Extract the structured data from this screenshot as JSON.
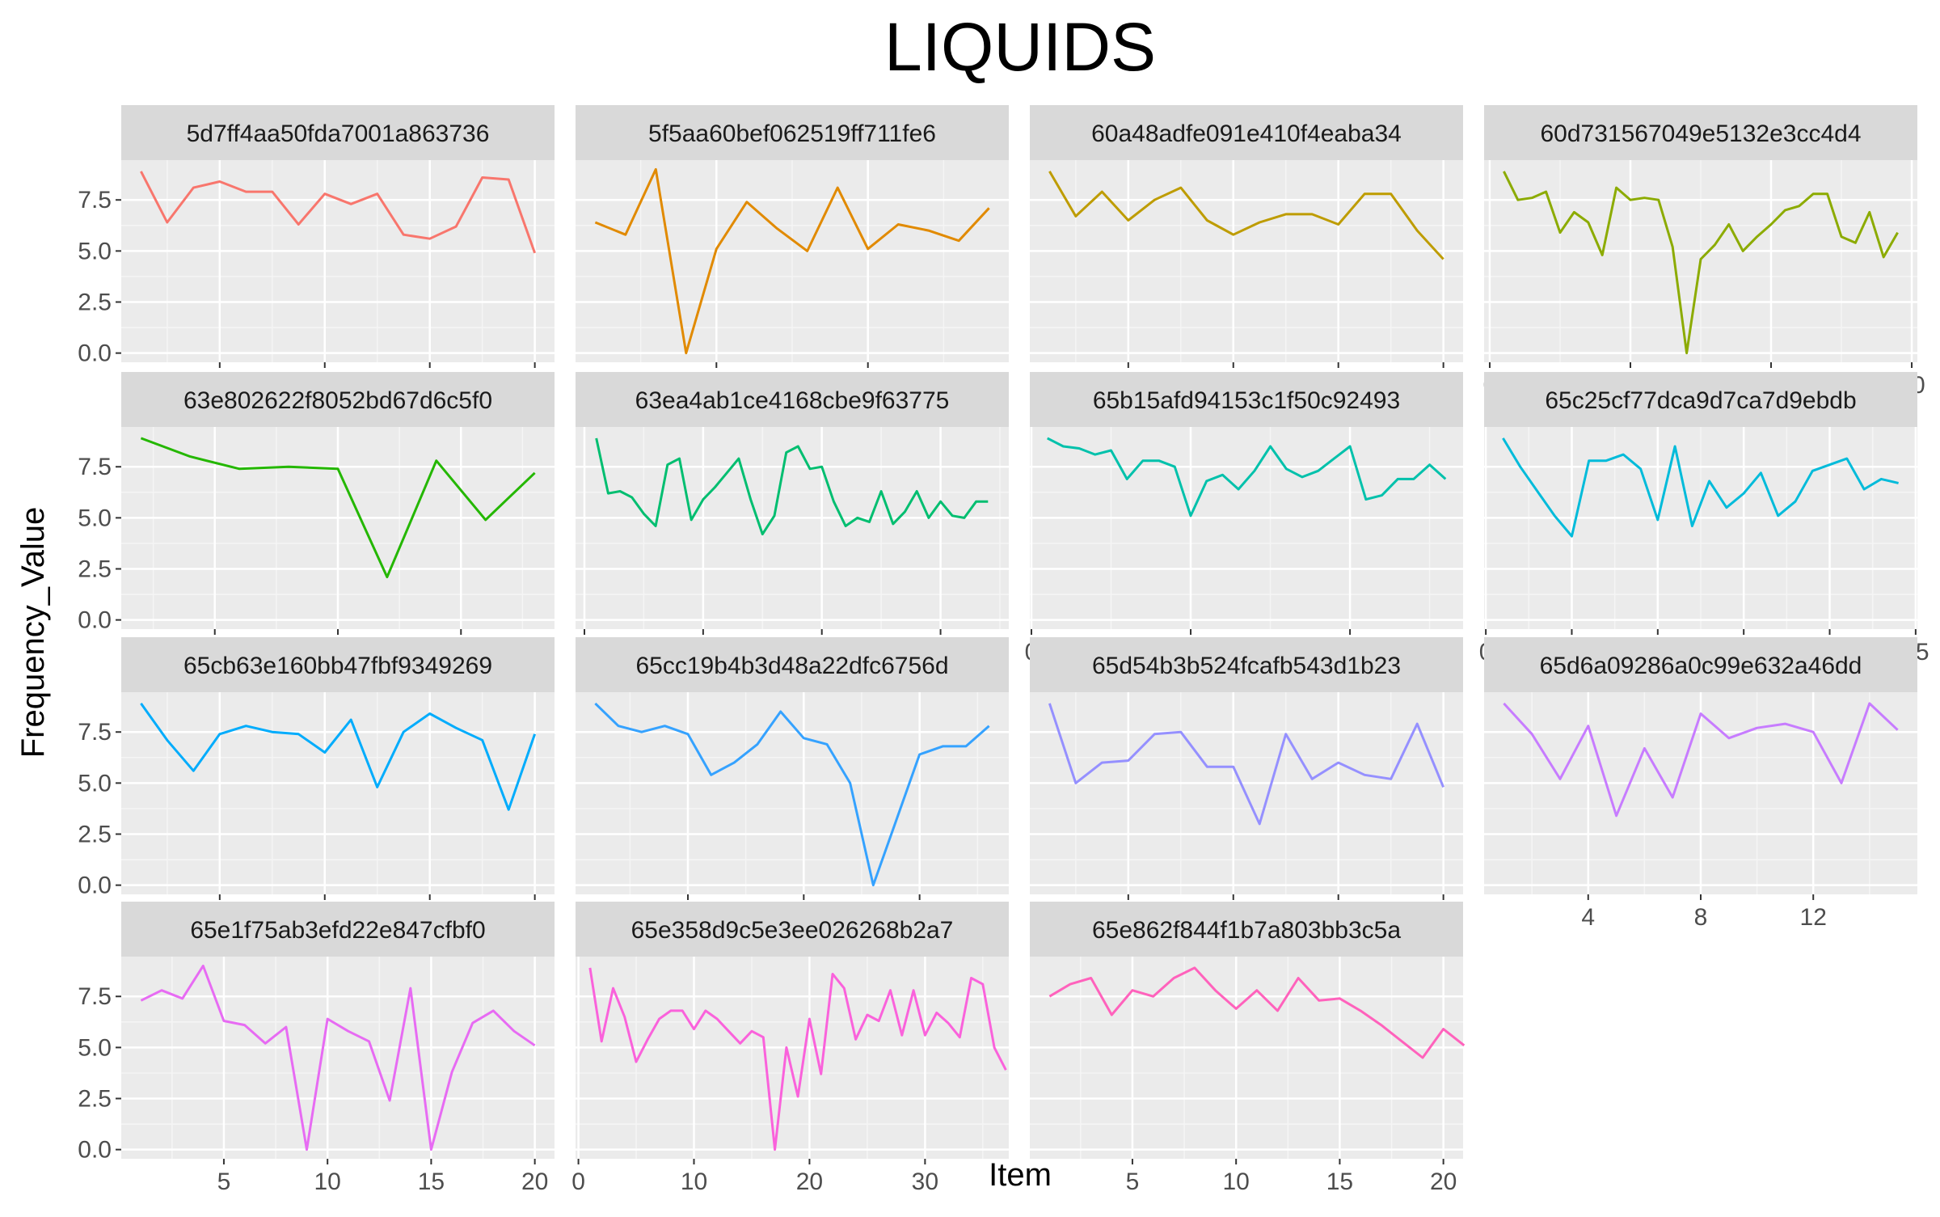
{
  "chart_data": {
    "type": "line",
    "title": "LIQUIDS",
    "xlabel": "Item",
    "ylabel": "Frequency_Value",
    "ylim": [
      0,
      9
    ],
    "y_ticks": [
      "0.0",
      "2.5",
      "5.0",
      "7.5"
    ],
    "y_tick_values": [
      0,
      2.5,
      5,
      7.5
    ],
    "grid": true,
    "legend": "none",
    "facets": [
      {
        "name": "5d7ff4aa50fda7001a863736",
        "color": "#F8766D",
        "xlim": [
          0.25,
          16.75
        ],
        "x_ticks": [
          "4",
          "8",
          "12",
          "16"
        ],
        "x_tick_values": [
          4,
          8,
          12,
          16
        ],
        "values": [
          8.9,
          6.4,
          8.1,
          8.4,
          7.9,
          7.9,
          6.3,
          7.8,
          7.3,
          7.8,
          5.8,
          5.6,
          6.2,
          8.6,
          8.5,
          4.9
        ]
      },
      {
        "name": "5f5aa60bef062519ff711fe6",
        "color": "#E18A00",
        "xlim": [
          0.35,
          14.65
        ],
        "x_ticks": [
          "5",
          "10"
        ],
        "x_tick_values": [
          5,
          10
        ],
        "values": [
          6.4,
          5.8,
          9.0,
          0.0,
          5.1,
          7.4,
          6.1,
          5.0,
          8.1,
          5.1,
          6.3,
          6.0,
          5.5,
          7.1
        ]
      },
      {
        "name": "60a48adfe091e410f4eaba34",
        "color": "#BE9C00",
        "xlim": [
          0.25,
          16.75
        ],
        "x_ticks": [
          "4",
          "8",
          "12",
          "16"
        ],
        "x_tick_values": [
          4,
          8,
          12,
          16
        ],
        "values": [
          8.9,
          6.7,
          7.9,
          6.5,
          7.5,
          8.1,
          6.5,
          5.8,
          6.4,
          6.8,
          6.8,
          6.3,
          7.8,
          7.8,
          6.0,
          4.6
        ]
      },
      {
        "name": "60d731567049e5132e3cc4d4",
        "color": "#8CAB00",
        "xlim": [
          -0.4,
          30.4
        ],
        "x_ticks": [
          "0",
          "10",
          "20",
          "30"
        ],
        "x_tick_values": [
          0,
          10,
          20,
          30
        ],
        "values": [
          8.9,
          7.5,
          7.6,
          7.9,
          5.9,
          6.9,
          6.4,
          4.8,
          8.1,
          7.5,
          7.6,
          7.5,
          5.2,
          0.0,
          4.6,
          5.3,
          6.3,
          5.0,
          5.7,
          6.3,
          7.0,
          7.2,
          7.8,
          7.8,
          5.7,
          5.4,
          6.9,
          4.7,
          5.9
        ]
      },
      {
        "name": "63e802622f8052bd67d6c5f0",
        "color": "#24B700",
        "xlim": [
          0.6,
          9.4
        ],
        "x_ticks": [
          "2.5",
          "5.0",
          "7.5"
        ],
        "x_tick_values": [
          2.5,
          5,
          7.5
        ],
        "values": [
          8.9,
          8.0,
          7.4,
          7.5,
          7.4,
          2.1,
          7.8,
          4.9,
          7.2
        ]
      },
      {
        "name": "63ea4ab1ce4168cbe9f63775",
        "color": "#00BE70",
        "xlim": [
          -0.75,
          35.75
        ],
        "x_ticks": [
          "0",
          "10",
          "20",
          "30"
        ],
        "x_tick_values": [
          0,
          10,
          20,
          30
        ],
        "values": [
          8.9,
          6.2,
          6.3,
          6.0,
          5.2,
          4.6,
          7.6,
          7.9,
          4.9,
          5.9,
          6.5,
          7.2,
          7.9,
          5.9,
          4.2,
          5.1,
          8.2,
          8.5,
          7.4,
          7.5,
          5.8,
          4.6,
          5.0,
          4.8,
          6.3,
          4.7,
          5.3,
          6.3,
          5.0,
          5.8,
          5.1,
          5.0,
          5.8,
          5.8
        ]
      },
      {
        "name": "65b15afd94153c1f50c92493",
        "color": "#00C1AB",
        "xlim": [
          -0.1,
          27.1
        ],
        "x_ticks": [
          "0",
          "10",
          "20"
        ],
        "x_tick_values": [
          0,
          10,
          20
        ],
        "values": [
          8.9,
          8.5,
          8.4,
          8.1,
          8.3,
          6.9,
          7.8,
          7.8,
          7.5,
          5.1,
          6.8,
          7.1,
          6.4,
          7.3,
          8.5,
          7.4,
          7.0,
          7.3,
          7.9,
          8.5,
          5.9,
          6.1,
          6.9,
          6.9,
          7.6,
          6.9
        ]
      },
      {
        "name": "65c25cf77dca9d7ca7d9ebdb",
        "color": "#00BBDA",
        "xlim": [
          -0.1,
          25.1
        ],
        "x_ticks": [
          "0",
          "5",
          "10",
          "15",
          "20",
          "25"
        ],
        "x_tick_values": [
          0,
          5,
          10,
          15,
          20,
          25
        ],
        "values": [
          8.9,
          7.5,
          6.3,
          5.1,
          4.1,
          7.8,
          7.8,
          8.1,
          7.4,
          4.9,
          8.5,
          4.6,
          6.8,
          5.5,
          6.2,
          7.2,
          5.1,
          5.8,
          7.3,
          7.6,
          7.9,
          6.4,
          6.9,
          6.7
        ]
      },
      {
        "name": "65cb63e160bb47fbf9349269",
        "color": "#00ACFC",
        "xlim": [
          0.25,
          16.75
        ],
        "x_ticks": [
          "4",
          "8",
          "12",
          "16"
        ],
        "x_tick_values": [
          4,
          8,
          12,
          16
        ],
        "values": [
          8.9,
          7.1,
          5.6,
          7.4,
          7.8,
          7.5,
          7.4,
          6.5,
          8.1,
          4.8,
          7.5,
          8.4,
          7.7,
          7.1,
          3.7,
          7.4
        ]
      },
      {
        "name": "65cc19b4b3d48a22dfc6756d",
        "color": "#35A2FF",
        "xlim": [
          0.15,
          18.85
        ],
        "x_ticks": [
          "5",
          "10",
          "15"
        ],
        "x_tick_values": [
          5,
          10,
          15
        ],
        "values": [
          8.9,
          7.8,
          7.5,
          7.8,
          7.4,
          5.4,
          6.0,
          6.9,
          8.5,
          7.2,
          6.9,
          5.0,
          0.0,
          3.2,
          6.4,
          6.8,
          6.8,
          7.8
        ]
      },
      {
        "name": "65d54b3b524fcafb543d1b23",
        "color": "#9590FF",
        "xlim": [
          0.25,
          16.75
        ],
        "x_ticks": [
          "4",
          "8",
          "12",
          "16"
        ],
        "x_tick_values": [
          4,
          8,
          12,
          16
        ],
        "values": [
          8.9,
          5.0,
          6.0,
          6.1,
          7.4,
          7.5,
          5.8,
          5.8,
          3.0,
          7.4,
          5.2,
          6.0,
          5.4,
          5.2,
          7.9,
          4.8
        ]
      },
      {
        "name": "65d6a09286a0c99e632a46dd",
        "color": "#C77CFF",
        "xlim": [
          0.3,
          15.7
        ],
        "x_ticks": [
          "4",
          "8",
          "12"
        ],
        "x_tick_values": [
          4,
          8,
          12
        ],
        "values": [
          8.9,
          7.4,
          5.2,
          7.8,
          3.4,
          6.7,
          4.3,
          8.4,
          7.2,
          7.7,
          7.9,
          7.5,
          5.0,
          8.9,
          7.6
        ]
      },
      {
        "name": "65e1f75ab3efd22e847cfbf0",
        "color": "#E76BF3",
        "xlim": [
          0.05,
          20.95
        ],
        "x_ticks": [
          "5",
          "10",
          "15",
          "20"
        ],
        "x_tick_values": [
          5,
          10,
          15,
          20
        ],
        "values": [
          7.3,
          7.8,
          7.4,
          9.0,
          6.3,
          6.1,
          5.2,
          6.0,
          0.0,
          6.4,
          5.8,
          5.3,
          2.4,
          7.9,
          0.0,
          3.8,
          6.2,
          6.8,
          5.8,
          5.1
        ]
      },
      {
        "name": "65e358d9c5e3ee026268b2a7",
        "color": "#FA62DB",
        "xlim": [
          -0.25,
          37.25
        ],
        "x_ticks": [
          "0",
          "10",
          "20",
          "30"
        ],
        "x_tick_values": [
          0,
          10,
          20,
          30
        ],
        "values": [
          8.9,
          5.3,
          7.9,
          6.5,
          4.3,
          5.4,
          6.4,
          6.8,
          6.8,
          5.9,
          6.8,
          6.4,
          5.8,
          5.2,
          5.8,
          5.5,
          0.0,
          5.0,
          2.6,
          6.4,
          3.7,
          8.6,
          7.9,
          5.4,
          6.6,
          6.3,
          7.8,
          5.6,
          7.8,
          5.6,
          6.7,
          6.2,
          5.5,
          8.4,
          8.1,
          5.0,
          3.9
        ]
      },
      {
        "name": "65e862f844f1b7a803bb3c5a",
        "color": "#FF62BC",
        "xlim": [
          0.05,
          20.95
        ],
        "x_ticks": [
          "5",
          "10",
          "15",
          "20"
        ],
        "x_tick_values": [
          5,
          10,
          15,
          20
        ],
        "values": [
          7.5,
          8.1,
          8.4,
          6.6,
          7.8,
          7.5,
          8.4,
          8.9,
          7.8,
          6.9,
          7.8,
          6.8,
          8.4,
          7.3,
          7.4,
          6.8,
          6.1,
          5.3,
          4.5,
          5.9,
          5.1
        ]
      }
    ]
  }
}
